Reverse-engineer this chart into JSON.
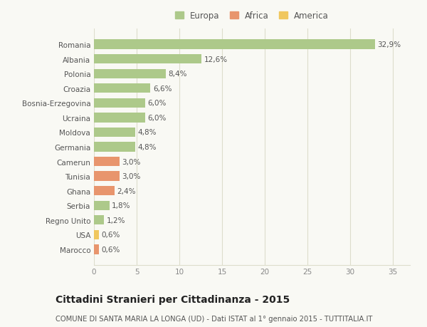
{
  "categories": [
    "Romania",
    "Albania",
    "Polonia",
    "Croazia",
    "Bosnia-Erzegovina",
    "Ucraina",
    "Moldova",
    "Germania",
    "Camerun",
    "Tunisia",
    "Ghana",
    "Serbia",
    "Regno Unito",
    "USA",
    "Marocco"
  ],
  "values": [
    32.9,
    12.6,
    8.4,
    6.6,
    6.0,
    6.0,
    4.8,
    4.8,
    3.0,
    3.0,
    2.4,
    1.8,
    1.2,
    0.6,
    0.6
  ],
  "labels": [
    "32,9%",
    "12,6%",
    "8,4%",
    "6,6%",
    "6,0%",
    "6,0%",
    "4,8%",
    "4,8%",
    "3,0%",
    "3,0%",
    "2,4%",
    "1,8%",
    "1,2%",
    "0,6%",
    "0,6%"
  ],
  "continent": [
    "Europa",
    "Europa",
    "Europa",
    "Europa",
    "Europa",
    "Europa",
    "Europa",
    "Europa",
    "Africa",
    "Africa",
    "Africa",
    "Europa",
    "Europa",
    "America",
    "Africa"
  ],
  "colors": {
    "Europa": "#adc98a",
    "Africa": "#e8956d",
    "America": "#f0c75e"
  },
  "legend_items": [
    "Europa",
    "Africa",
    "America"
  ],
  "legend_colors": [
    "#adc98a",
    "#e8956d",
    "#f0c75e"
  ],
  "xlim": [
    0,
    37
  ],
  "xticks": [
    0,
    5,
    10,
    15,
    20,
    25,
    30,
    35
  ],
  "title": "Cittadini Stranieri per Cittadinanza - 2015",
  "subtitle": "COMUNE DI SANTA MARIA LA LONGA (UD) - Dati ISTAT al 1° gennaio 2015 - TUTTITALIA.IT",
  "bg_color": "#f9f9f4",
  "plot_bg_color": "#f9f9f4",
  "grid_color": "#ddddcc",
  "bar_height": 0.65,
  "label_fontsize": 7.5,
  "tick_fontsize": 7.5,
  "title_fontsize": 10,
  "subtitle_fontsize": 7.2
}
